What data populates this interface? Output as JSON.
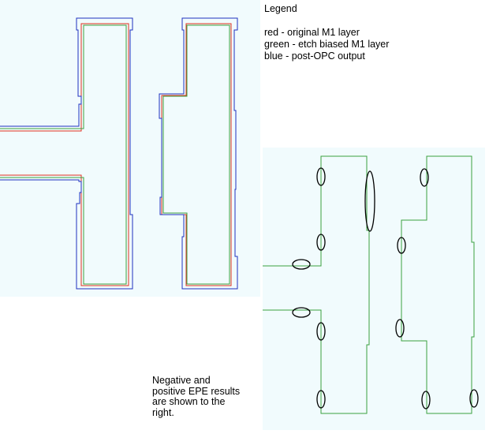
{
  "legend": {
    "title": "Legend",
    "items": [
      {
        "text": "red - original M1 layer",
        "color": "#e03020"
      },
      {
        "text": "green - etch biased M1 layer",
        "color": "#3aa040"
      },
      {
        "text": "blue - post-OPC output",
        "color": "#2030c0"
      }
    ]
  },
  "note": {
    "lines": [
      "Negative and",
      "positive EPE results",
      "are shown to the",
      "right."
    ]
  },
  "colors": {
    "panel_background": "#f1fbfd",
    "epe_marker": "#000000"
  }
}
